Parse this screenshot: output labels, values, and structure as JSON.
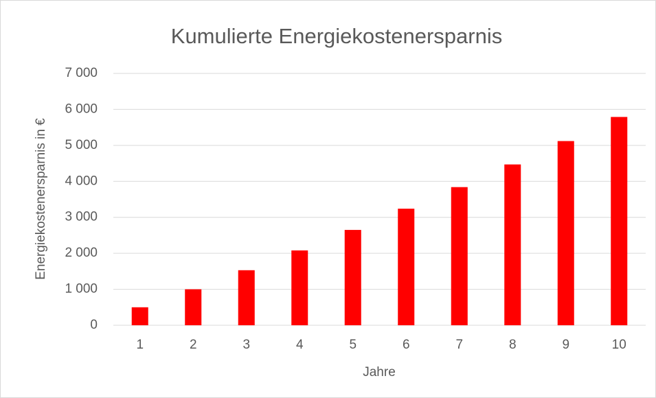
{
  "chart_data": {
    "type": "bar",
    "title": "Kumulierte Energiekostenersparnis",
    "xlabel": "Jahre",
    "ylabel": "Energiekostenersparnis in €",
    "categories": [
      "1",
      "2",
      "3",
      "4",
      "5",
      "6",
      "7",
      "8",
      "9",
      "10"
    ],
    "values": [
      500,
      1000,
      1530,
      2080,
      2650,
      3240,
      3840,
      4470,
      5120,
      5790
    ],
    "color": "#ff0000",
    "ylim": [
      0,
      7000
    ],
    "yticks": [
      0,
      {
        "value": 1000,
        "label": "1 000"
      },
      {
        "value": 2000,
        "label": "2 000"
      },
      {
        "value": 3000,
        "label": "3 000"
      },
      {
        "value": 4000,
        "label": "4 000"
      },
      {
        "value": 5000,
        "label": "5 000"
      },
      {
        "value": 6000,
        "label": "6 000"
      },
      {
        "value": 7000,
        "label": "7 000"
      }
    ],
    "grid": true
  }
}
